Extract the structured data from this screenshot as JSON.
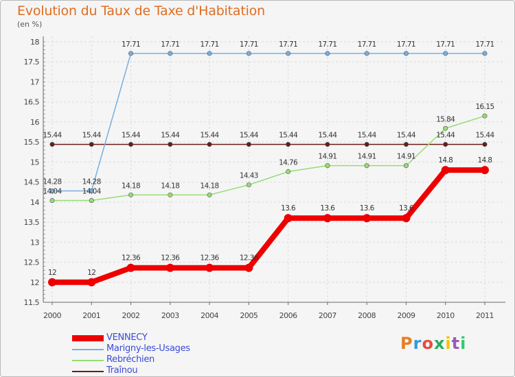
{
  "header": {
    "title": "Evolution du Taux de Taxe d'Habitation",
    "unit": "(en %)"
  },
  "logo": {
    "letters": [
      "P",
      "r",
      "o",
      "x",
      "i",
      "t",
      "i"
    ],
    "colors": [
      "#e67e22",
      "#3498db",
      "#e74c3c",
      "#27ae60",
      "#f1c40f",
      "#9b59b6",
      "#2ecc71"
    ]
  },
  "chart_data": {
    "type": "line",
    "x": [
      "2000",
      "2001",
      "2002",
      "2003",
      "2004",
      "2005",
      "2006",
      "2007",
      "2008",
      "2009",
      "2010",
      "2011"
    ],
    "ylim": [
      11.5,
      18
    ],
    "yticks": [
      "11.5",
      "12",
      "12.5",
      "13",
      "13.5",
      "14",
      "14.5",
      "15",
      "15.5",
      "16",
      "16.5",
      "17",
      "17.5",
      "18"
    ],
    "grid": true,
    "series": [
      {
        "name": "Traînou",
        "color": "#6b1a1a",
        "values": [
          15.44,
          15.44,
          15.44,
          15.44,
          15.44,
          15.44,
          15.44,
          15.44,
          15.44,
          15.44,
          15.44,
          15.44
        ],
        "labels": [
          "15.44",
          "15.44",
          "15.44",
          "15.44",
          "15.44",
          "15.44",
          "15.44",
          "15.44",
          "15.44",
          "15.44",
          "15.44",
          "15.44"
        ]
      },
      {
        "name": "Rebréchien",
        "color": "#96dc74",
        "values": [
          14.04,
          14.04,
          14.18,
          14.18,
          14.18,
          14.43,
          14.76,
          14.91,
          14.91,
          14.91,
          15.84,
          16.15
        ],
        "labels": [
          "14.04",
          "14.04",
          "14.18",
          "14.18",
          "14.18",
          "14.43",
          "14.76",
          "14.91",
          "14.91",
          "14.91",
          "15.84",
          "16.15"
        ]
      },
      {
        "name": "Marigny-les-Usages",
        "color": "#78aee0",
        "values": [
          14.28,
          14.28,
          17.71,
          17.71,
          17.71,
          17.71,
          17.71,
          17.71,
          17.71,
          17.71,
          17.71,
          17.71
        ],
        "labels": [
          "14.28",
          "14.28",
          "17.71",
          "17.71",
          "17.71",
          "17.71",
          "17.71",
          "17.71",
          "17.71",
          "17.71",
          "17.71",
          "17.71"
        ]
      },
      {
        "name": "VENNECY",
        "color": "#ee0000",
        "values": [
          12,
          12,
          12.36,
          12.36,
          12.36,
          12.36,
          13.6,
          13.6,
          13.6,
          13.6,
          14.8,
          14.8
        ],
        "labels": [
          "12",
          "12",
          "12.36",
          "12.36",
          "12.36",
          "12.36",
          "13.6",
          "13.6",
          "13.6",
          "13.6",
          "14.8",
          "14.8"
        ]
      }
    ],
    "legend": {
      "placement": "bottom-left",
      "entries": [
        "VENNECY",
        "Marigny-les-Usages",
        "Rebréchien",
        "Traînou"
      ]
    }
  }
}
